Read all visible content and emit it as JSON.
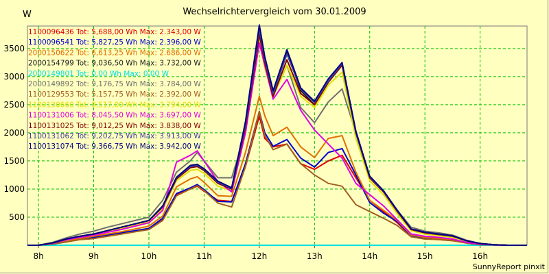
{
  "chart_data": {
    "type": "line",
    "title": "Wechselrichtervergleich vom 30.01.2009",
    "ylabel": "W",
    "xlabel": "",
    "ylim": [
      0,
      3900
    ],
    "xlim": [
      7.8,
      16.85
    ],
    "yticks": [
      500,
      1000,
      1500,
      2000,
      2500,
      3000,
      3500
    ],
    "xticks": [
      {
        "v": 8,
        "label": "8h"
      },
      {
        "v": 9,
        "label": "9h"
      },
      {
        "v": 10,
        "label": "10h"
      },
      {
        "v": 11,
        "label": "11h"
      },
      {
        "v": 12,
        "label": "12h"
      },
      {
        "v": 13,
        "label": "13h"
      },
      {
        "v": 14,
        "label": "14h"
      },
      {
        "v": 15,
        "label": "15h"
      },
      {
        "v": 16,
        "label": "16h"
      }
    ],
    "grid": true,
    "legend_position": "top-left",
    "x": [
      7.8,
      8.0,
      8.25,
      8.5,
      8.75,
      9.0,
      9.25,
      9.5,
      9.75,
      10.0,
      10.25,
      10.5,
      10.75,
      10.875,
      11.0,
      11.25,
      11.5,
      11.75,
      12.0,
      12.1,
      12.25,
      12.5,
      12.75,
      13.0,
      13.25,
      13.5,
      13.75,
      14.0,
      14.25,
      14.5,
      14.75,
      15.0,
      15.25,
      15.5,
      15.75,
      16.0,
      16.25,
      16.5,
      16.75,
      16.85
    ],
    "series": [
      {
        "name": "1100096436",
        "tot": "Tot: 5,688,00 Wh",
        "max": "Max: 2.343,00 W",
        "color": "#e00000",
        "values": [
          0,
          0,
          20,
          60,
          100,
          120,
          160,
          200,
          240,
          280,
          450,
          900,
          1000,
          1050,
          960,
          800,
          780,
          1400,
          2300,
          1900,
          1750,
          1800,
          1450,
          1350,
          1500,
          1600,
          1200,
          800,
          600,
          400,
          160,
          120,
          100,
          80,
          40,
          10,
          5,
          0,
          0,
          0
        ]
      },
      {
        "name": "1100096541",
        "tot": "Tot: 5,827,25 Wh",
        "max": "Max: 2.396,00 W",
        "color": "#0000d0",
        "values": [
          0,
          0,
          20,
          60,
          110,
          140,
          180,
          220,
          260,
          300,
          480,
          920,
          1020,
          1080,
          990,
          780,
          770,
          1450,
          2380,
          2000,
          1760,
          1880,
          1550,
          1390,
          1650,
          1720,
          1250,
          760,
          570,
          420,
          170,
          130,
          110,
          90,
          40,
          10,
          5,
          0,
          0,
          0
        ]
      },
      {
        "name": "2000150622",
        "tot": "Tot: 6,613,25 Wh",
        "max": "Max: 2.686,00 W",
        "color": "#e07000",
        "values": [
          0,
          0,
          25,
          70,
          120,
          160,
          200,
          240,
          290,
          340,
          520,
          1040,
          1180,
          1220,
          1120,
          880,
          870,
          1650,
          2650,
          2300,
          1950,
          2100,
          1750,
          1560,
          1900,
          1950,
          1300,
          800,
          620,
          440,
          180,
          140,
          120,
          90,
          40,
          10,
          5,
          0,
          0,
          0
        ]
      },
      {
        "name": "2000154799",
        "tot": "Tot: 9,036,50 Wh",
        "max": "Max: 3.732,00 W",
        "color": "#202020",
        "values": [
          0,
          0,
          40,
          110,
          160,
          200,
          260,
          320,
          380,
          440,
          680,
          1200,
          1400,
          1430,
          1360,
          1140,
          1020,
          2150,
          3650,
          3200,
          2700,
          3450,
          2750,
          2500,
          2900,
          3240,
          2000,
          1200,
          950,
          600,
          280,
          220,
          190,
          160,
          80,
          30,
          10,
          0,
          0,
          0
        ]
      },
      {
        "name": "2000149801",
        "tot": "Tot: 0,00 Wh",
        "max": "Max: 0,00 W",
        "color": "#00e0e0",
        "values": [
          0,
          0,
          0,
          0,
          0,
          0,
          0,
          0,
          0,
          0,
          0,
          0,
          0,
          0,
          0,
          0,
          0,
          0,
          0,
          0,
          0,
          0,
          0,
          0,
          0,
          0,
          0,
          0,
          0,
          0,
          0,
          0,
          0,
          0,
          0,
          0,
          0,
          0,
          0,
          0
        ]
      },
      {
        "name": "2000149892",
        "tot": "Tot: 9,176,75 Wh",
        "max": "Max: 3.784,00 W",
        "color": "#707070",
        "values": [
          0,
          0,
          50,
          130,
          200,
          250,
          320,
          380,
          440,
          500,
          800,
          1300,
          1500,
          1650,
          1500,
          1200,
          1200,
          2000,
          3700,
          3300,
          2650,
          3200,
          2450,
          2180,
          2550,
          2780,
          2000,
          1200,
          950,
          620,
          320,
          250,
          220,
          180,
          90,
          30,
          10,
          0,
          0,
          0
        ]
      },
      {
        "name": "1100129553",
        "tot": "Tot: 5,157,75 Wh",
        "max": "Max: 2.392,00 W",
        "color": "#a06020",
        "values": [
          0,
          0,
          20,
          60,
          100,
          120,
          160,
          200,
          240,
          280,
          440,
          880,
          1000,
          1060,
          970,
          750,
          680,
          1400,
          2380,
          1950,
          1700,
          1800,
          1450,
          1250,
          1100,
          1050,
          720,
          600,
          480,
          350,
          150,
          110,
          100,
          80,
          40,
          10,
          5,
          0,
          0,
          0
        ]
      },
      {
        "name": "1100130660",
        "tot": "Tot: 8,517,00 Wh",
        "max": "Max: 3.794,00 W",
        "color": "#e0e000",
        "values": [
          0,
          0,
          40,
          100,
          150,
          190,
          240,
          300,
          360,
          420,
          650,
          1150,
          1330,
          1350,
          1280,
          1050,
          970,
          2050,
          3650,
          3150,
          2650,
          3200,
          2650,
          2450,
          2850,
          3080,
          1900,
          1150,
          900,
          560,
          260,
          200,
          170,
          140,
          70,
          25,
          10,
          0,
          0,
          0
        ]
      },
      {
        "name": "1100131006",
        "tot": "Tot: 8,045,50 Wh",
        "max": "Max: 3.697,00 W",
        "color": "#e000e0",
        "values": [
          0,
          0,
          35,
          95,
          140,
          180,
          230,
          280,
          340,
          400,
          620,
          1480,
          1600,
          1680,
          1500,
          1130,
          950,
          2000,
          3600,
          3200,
          2600,
          2950,
          2400,
          2050,
          1800,
          1550,
          1100,
          900,
          700,
          450,
          200,
          160,
          140,
          110,
          50,
          20,
          5,
          0,
          0,
          0
        ]
      },
      {
        "name": "1100131025",
        "tot": "Tot: 9,012,25 Wh",
        "max": "Max: 3.838,00 W",
        "color": "#800000",
        "values": [
          0,
          0,
          40,
          110,
          160,
          200,
          260,
          320,
          380,
          440,
          680,
          1180,
          1380,
          1400,
          1330,
          1100,
          1000,
          2100,
          3750,
          3250,
          2650,
          3300,
          2700,
          2500,
          2900,
          3200,
          2000,
          1200,
          950,
          600,
          280,
          220,
          190,
          160,
          80,
          30,
          10,
          0,
          0,
          0
        ]
      },
      {
        "name": "1100131062",
        "tot": "Tot: 9,202,75 Wh",
        "max": "Max: 3.913,00 W",
        "color": "#4040a0",
        "values": [
          0,
          0,
          40,
          110,
          160,
          200,
          260,
          320,
          380,
          440,
          690,
          1200,
          1400,
          1420,
          1350,
          1120,
          1010,
          2150,
          3850,
          3300,
          2700,
          3400,
          2780,
          2540,
          2920,
          3230,
          2000,
          1220,
          960,
          610,
          290,
          230,
          195,
          165,
          80,
          30,
          10,
          0,
          0,
          0
        ]
      },
      {
        "name": "1100131074",
        "tot": "Tot: 9,366,75 Wh",
        "max": "Max: 3.942,00 W",
        "color": "#000080",
        "values": [
          0,
          0,
          40,
          110,
          160,
          200,
          260,
          320,
          380,
          440,
          700,
          1210,
          1420,
          1440,
          1360,
          1140,
          1020,
          2200,
          3920,
          3350,
          2750,
          3480,
          2800,
          2560,
          2960,
          3250,
          2030,
          1230,
          970,
          620,
          290,
          230,
          200,
          170,
          80,
          30,
          10,
          0,
          0,
          0
        ]
      }
    ]
  },
  "footer": {
    "credit": "SunnyReport pinxit"
  }
}
